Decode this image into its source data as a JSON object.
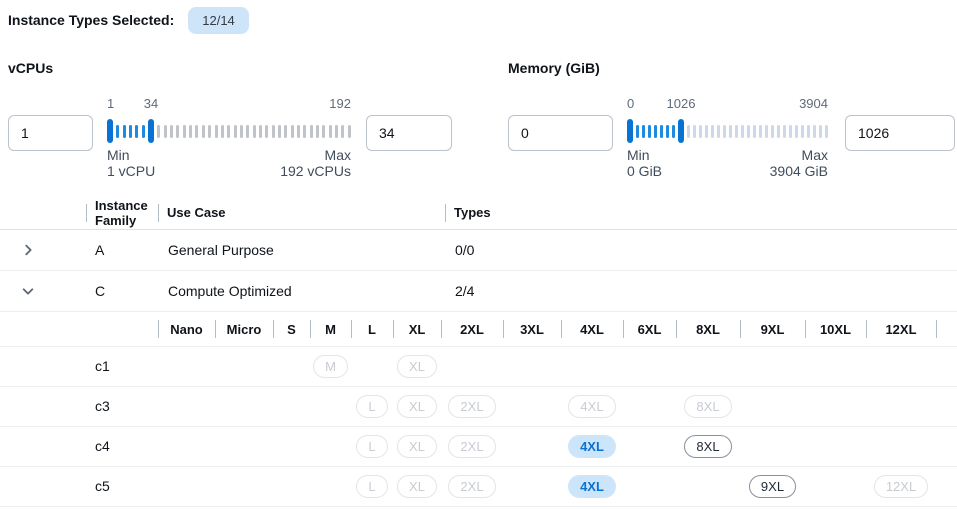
{
  "colors": {
    "accent_blue": "#0972d3",
    "selected_pill_bg": "#cde5fb",
    "count_badge_bg": "#cde4f9",
    "disabled_gray": "#b6bac1"
  },
  "header": {
    "label": "Instance Types Selected:",
    "badge": "12/14"
  },
  "filters": [
    {
      "label": "vCPUs",
      "min_value": "1",
      "max_value": "34",
      "scale": {
        "min": "1",
        "mid": "34",
        "max": "192"
      },
      "min_caption": "Min",
      "min_detail": "1 vCPU",
      "max_caption": "Max",
      "max_detail": "192 vCPUs"
    },
    {
      "label": "Memory (GiB)",
      "min_value": "0",
      "max_value": "1026",
      "scale": {
        "min": "0",
        "mid": "1026",
        "max": "3904"
      },
      "min_caption": "Min",
      "min_detail": "0 GiB",
      "max_caption": "Max",
      "max_detail": "3904 GiB"
    }
  ],
  "table": {
    "columns": {
      "family": "Instance Family",
      "use_case": "Use Case",
      "types": "Types"
    },
    "header_checkbox_state": "indeterminate",
    "family_rows": [
      {
        "letter": "A",
        "use_case": "General Purpose",
        "types": "0/0",
        "expanded": false,
        "checkbox_state": "disabled"
      },
      {
        "letter": "C",
        "use_case": "Compute Optimized",
        "types": "2/4",
        "expanded": true,
        "checkbox_state": "indeterminate"
      }
    ],
    "sizes": [
      "Nano",
      "Micro",
      "S",
      "M",
      "L",
      "XL",
      "2XL",
      "3XL",
      "4XL",
      "6XL",
      "8XL",
      "9XL",
      "10XL",
      "12XL"
    ],
    "instance_rows": [
      {
        "name": "c1",
        "checkbox_state": "disabled",
        "badges": [
          {
            "size": "M",
            "state": "disabled"
          },
          {
            "size": "XL",
            "state": "disabled"
          }
        ]
      },
      {
        "name": "c3",
        "checkbox_state": "disabled",
        "badges": [
          {
            "size": "L",
            "state": "disabled"
          },
          {
            "size": "XL",
            "state": "disabled"
          },
          {
            "size": "2XL",
            "state": "disabled"
          },
          {
            "size": "4XL",
            "state": "disabled"
          },
          {
            "size": "8XL",
            "state": "disabled"
          }
        ]
      },
      {
        "name": "c4",
        "checkbox_state": "indeterminate",
        "badges": [
          {
            "size": "L",
            "state": "disabled"
          },
          {
            "size": "XL",
            "state": "disabled"
          },
          {
            "size": "2XL",
            "state": "disabled"
          },
          {
            "size": "4XL",
            "state": "selected"
          },
          {
            "size": "8XL",
            "state": "available"
          }
        ]
      },
      {
        "name": "c5",
        "checkbox_state": "indeterminate",
        "badges": [
          {
            "size": "L",
            "state": "disabled"
          },
          {
            "size": "XL",
            "state": "disabled"
          },
          {
            "size": "2XL",
            "state": "disabled"
          },
          {
            "size": "4XL",
            "state": "selected"
          },
          {
            "size": "9XL",
            "state": "available"
          },
          {
            "size": "12XL",
            "state": "disabled"
          }
        ]
      }
    ]
  }
}
